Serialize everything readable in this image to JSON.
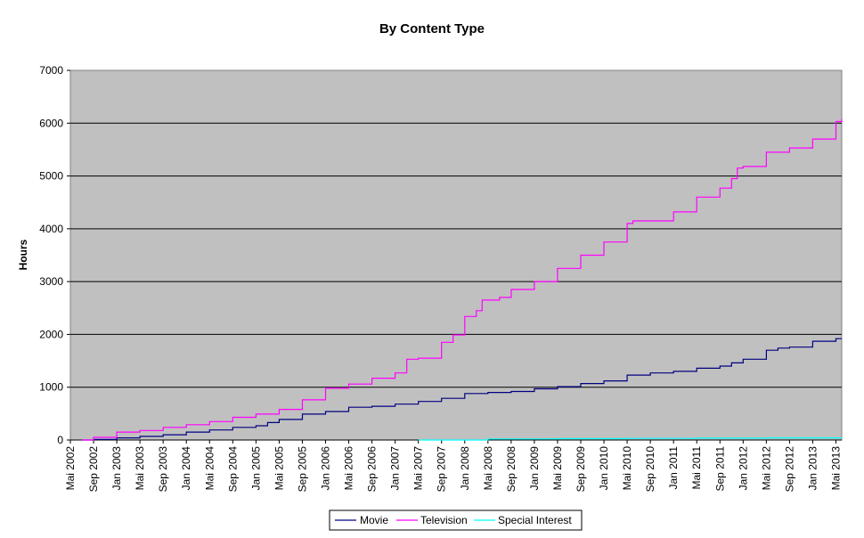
{
  "chart_data": {
    "type": "line",
    "title": "By Content Type",
    "ylabel": "Hours",
    "xlabel": "",
    "ylim": [
      0,
      7000
    ],
    "yticks": [
      0,
      1000,
      2000,
      3000,
      4000,
      5000,
      6000,
      7000
    ],
    "x_categories": [
      "Mai 2002",
      "Sep 2002",
      "Jan 2003",
      "Mai 2003",
      "Sep 2003",
      "Jan 2004",
      "Mai 2004",
      "Sep 2004",
      "Jan 2005",
      "Mai 2005",
      "Sep 2005",
      "Jan 2006",
      "Mai 2006",
      "Sep 2006",
      "Jan 2007",
      "Mai 2007",
      "Sep 2007",
      "Jan 2008",
      "Mai 2008",
      "Sep 2008",
      "Jan 2009",
      "Mai 2009",
      "Sep 2009",
      "Jan 2010",
      "Mai 2010",
      "Sep 2010",
      "Jan 2011",
      "Mai 2011",
      "Sep 2011",
      "Jan 2012",
      "Mai 2012",
      "Sep 2012",
      "Jan 2013",
      "Mai 2013"
    ],
    "grid": true,
    "legend_position": "bottom",
    "plot_background": "#C0C0C0",
    "series": [
      {
        "name": "Movie",
        "color": "#000080",
        "points": [
          [
            "Jul 2002",
            0
          ],
          [
            "Sep 2002",
            10
          ],
          [
            "Jan 2003",
            40
          ],
          [
            "Mai 2003",
            70
          ],
          [
            "Sep 2003",
            100
          ],
          [
            "Jan 2004",
            150
          ],
          [
            "Mai 2004",
            190
          ],
          [
            "Sep 2004",
            240
          ],
          [
            "Jan 2005",
            270
          ],
          [
            "Mar 2005",
            330
          ],
          [
            "Mai 2005",
            390
          ],
          [
            "Sep 2005",
            490
          ],
          [
            "Jan 2006",
            540
          ],
          [
            "Mai 2006",
            620
          ],
          [
            "Sep 2006",
            640
          ],
          [
            "Jan 2007",
            680
          ],
          [
            "Mai 2007",
            730
          ],
          [
            "Sep 2007",
            790
          ],
          [
            "Jan 2008",
            880
          ],
          [
            "Mai 2008",
            900
          ],
          [
            "Sep 2008",
            920
          ],
          [
            "Jan 2009",
            970
          ],
          [
            "Mai 2009",
            1010
          ],
          [
            "Sep 2009",
            1070
          ],
          [
            "Jan 2010",
            1120
          ],
          [
            "Mai 2010",
            1230
          ],
          [
            "Sep 2010",
            1270
          ],
          [
            "Jan 2011",
            1300
          ],
          [
            "Mai 2011",
            1360
          ],
          [
            "Sep 2011",
            1400
          ],
          [
            "Nov 2011",
            1460
          ],
          [
            "Jan 2012",
            1530
          ],
          [
            "Mai 2012",
            1700
          ],
          [
            "Jul 2012",
            1740
          ],
          [
            "Sep 2012",
            1760
          ],
          [
            "Jan 2013",
            1870
          ],
          [
            "Mai 2013",
            1920
          ],
          [
            "Jun 2013",
            1920
          ]
        ]
      },
      {
        "name": "Television",
        "color": "#FF00FF",
        "points": [
          [
            "Jul 2002",
            0
          ],
          [
            "Sep 2002",
            50
          ],
          [
            "Jan 2003",
            150
          ],
          [
            "Mai 2003",
            180
          ],
          [
            "Sep 2003",
            240
          ],
          [
            "Jan 2004",
            290
          ],
          [
            "Mai 2004",
            350
          ],
          [
            "Sep 2004",
            430
          ],
          [
            "Jan 2005",
            490
          ],
          [
            "Mai 2005",
            580
          ],
          [
            "Sep 2005",
            760
          ],
          [
            "Jan 2006",
            980
          ],
          [
            "Mai 2006",
            1060
          ],
          [
            "Sep 2006",
            1170
          ],
          [
            "Jan 2007",
            1270
          ],
          [
            "Mar 2007",
            1530
          ],
          [
            "Mai 2007",
            1550
          ],
          [
            "Sep 2007",
            1850
          ],
          [
            "Nov 2007",
            1990
          ],
          [
            "Jan 2008",
            2340
          ],
          [
            "Mar 2008",
            2450
          ],
          [
            "Apr 2008",
            2650
          ],
          [
            "Jul 2008",
            2700
          ],
          [
            "Sep 2008",
            2850
          ],
          [
            "Jan 2009",
            3000
          ],
          [
            "Mai 2009",
            3250
          ],
          [
            "Sep 2009",
            3500
          ],
          [
            "Jan 2010",
            3750
          ],
          [
            "Mai 2010",
            4100
          ],
          [
            "Jun 2010",
            4150
          ],
          [
            "Sep 2010",
            4150
          ],
          [
            "Jan 2011",
            4320
          ],
          [
            "Mai 2011",
            4600
          ],
          [
            "Sep 2011",
            4770
          ],
          [
            "Nov 2011",
            4950
          ],
          [
            "Dec 2011",
            5150
          ],
          [
            "Jan 2012",
            5180
          ],
          [
            "Mai 2012",
            5450
          ],
          [
            "Sep 2012",
            5530
          ],
          [
            "Jan 2013",
            5700
          ],
          [
            "Mai 2013",
            6030
          ],
          [
            "Jun 2013",
            6080
          ]
        ]
      },
      {
        "name": "Special Interest",
        "color": "#00FFFF",
        "points": [
          [
            "Mai 2007",
            0
          ],
          [
            "Mai 2008",
            20
          ],
          [
            "Mai 2009",
            25
          ],
          [
            "Mai 2010",
            30
          ],
          [
            "Mai 2011",
            35
          ],
          [
            "Mai 2012",
            40
          ],
          [
            "Jun 2013",
            45
          ]
        ]
      }
    ]
  }
}
